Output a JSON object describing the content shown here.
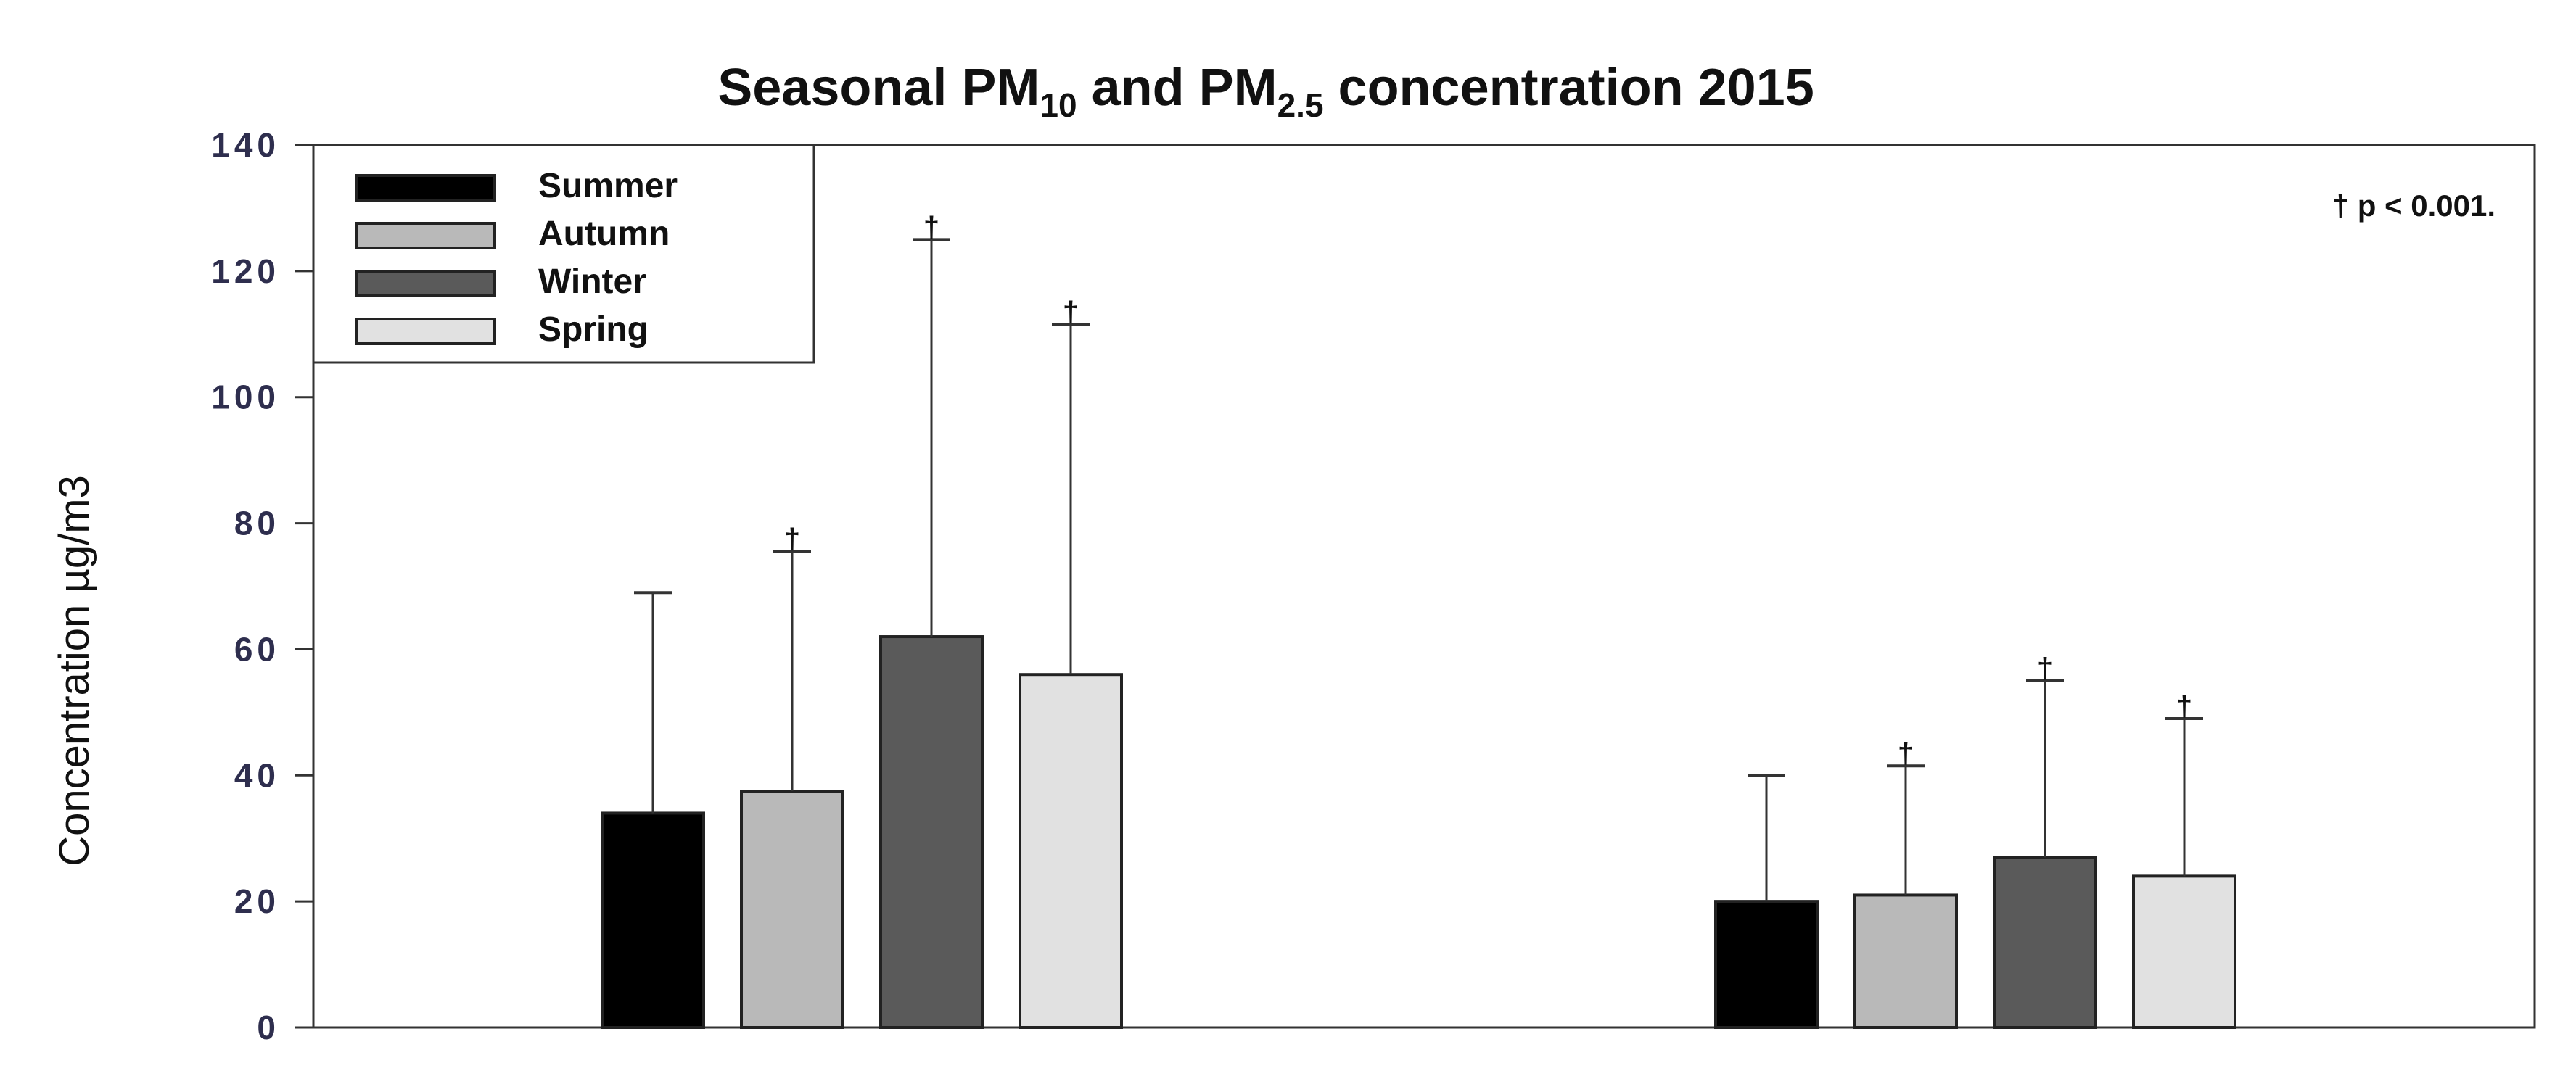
{
  "chart_data": {
    "type": "bar",
    "title": "Seasonal PM",
    "title_parts": {
      "pm10_base": "PM",
      "pm10_sub": "10",
      "conjunction": " and ",
      "pm25_base": "PM",
      "pm25_sub": "2.5",
      "suffix": " concentration 2015"
    },
    "ylabel": "Concentration µg/m3",
    "xlabel": "",
    "ylim": [
      0,
      140
    ],
    "yticks": [
      "0",
      "20",
      "40",
      "60",
      "80",
      "100",
      "120",
      "140"
    ],
    "ytick_values": [
      0,
      20,
      40,
      60,
      80,
      100,
      120,
      140
    ],
    "groups": 2,
    "significance_mark": "†",
    "note": "† p < 0.001.",
    "legend_position": "top-left",
    "series": [
      {
        "name": "Summer",
        "color": "#000000",
        "values": [
          34,
          20
        ],
        "errors": [
          35,
          20
        ],
        "significant": [
          false,
          false
        ]
      },
      {
        "name": "Autumn",
        "color": "#b9b9b9",
        "values": [
          37.5,
          21
        ],
        "errors": [
          38,
          20.5
        ],
        "significant": [
          true,
          true
        ]
      },
      {
        "name": "Winter",
        "color": "#5a5a5a",
        "values": [
          62,
          27
        ],
        "errors": [
          63,
          28
        ],
        "significant": [
          true,
          true
        ]
      },
      {
        "name": "Spring",
        "color": "#e1e1e1",
        "values": [
          56,
          24
        ],
        "errors": [
          55.5,
          25
        ],
        "significant": [
          true,
          true
        ]
      }
    ]
  }
}
